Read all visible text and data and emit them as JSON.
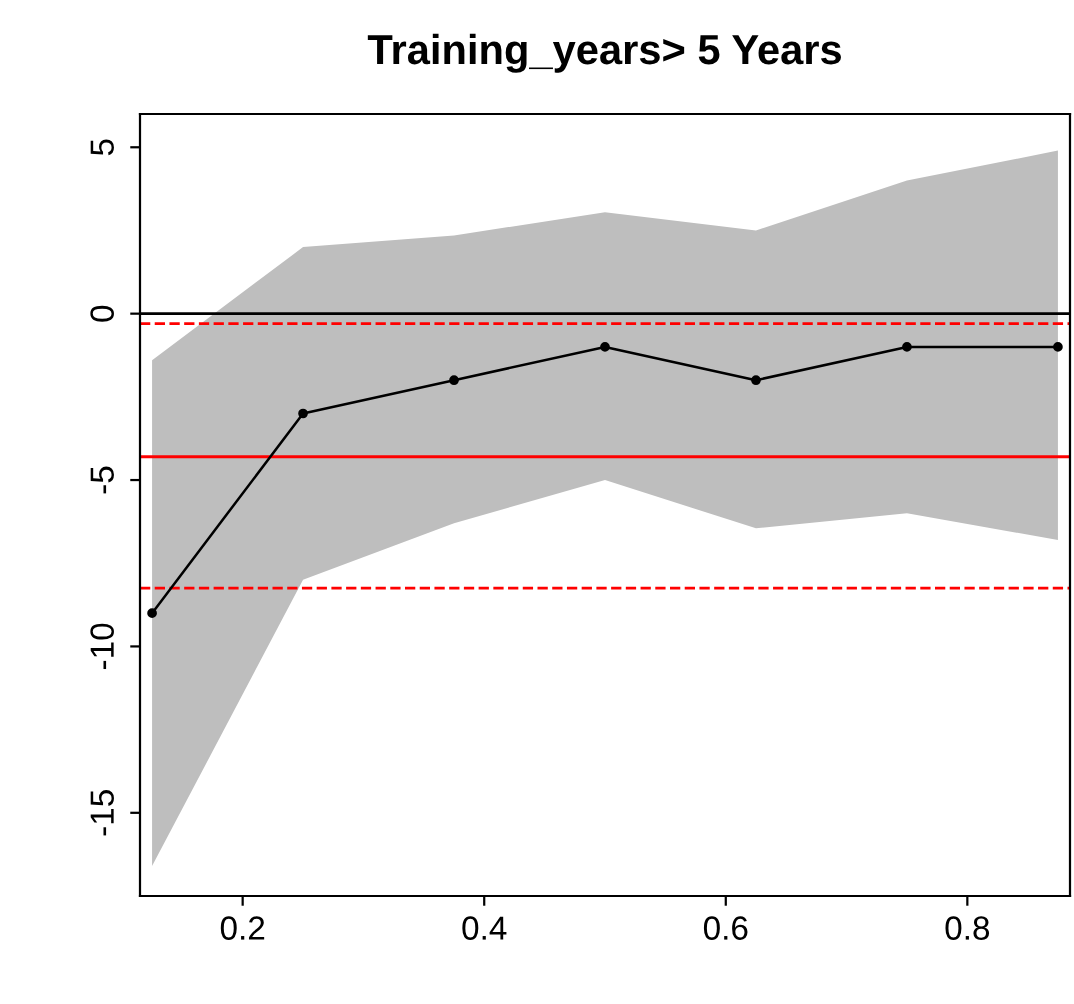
{
  "chart_data": {
    "type": "line",
    "title": "Training_years> 5 Years",
    "x": [
      0.125,
      0.25,
      0.375,
      0.5,
      0.625,
      0.75,
      0.875
    ],
    "series": [
      {
        "color": "#000000",
        "values": [
          -9,
          -3,
          -2,
          -1,
          -2,
          -1,
          -1
        ],
        "lower": [
          -16.6,
          -8.0,
          -6.3,
          -5.0,
          -6.45,
          -6.0,
          -6.8
        ],
        "upper": [
          -1.4,
          2.0,
          2.35,
          3.05,
          2.5,
          4.0,
          4.9
        ]
      }
    ],
    "xlim": [
      0.115,
      0.885
    ],
    "xticks": [
      0.2,
      0.4,
      0.6,
      0.8
    ],
    "ylim": [
      -17.5,
      6.0
    ],
    "yticks": [
      -15,
      -10,
      -5,
      0,
      5
    ],
    "ref_lines": [
      {
        "axis": "y",
        "value": 0,
        "color": "#000000",
        "line_style": "solid"
      },
      {
        "axis": "y",
        "value": -4.3,
        "color": "#ff0000",
        "line_style": "solid"
      },
      {
        "axis": "y",
        "value": -0.3,
        "color": "#ff0000",
        "line_style": "dashed"
      },
      {
        "axis": "y",
        "value": -8.25,
        "color": "#ff0000",
        "line_style": "dashed"
      }
    ],
    "marker": "circle",
    "line_style": "solid",
    "grid": false,
    "legend": false
  }
}
